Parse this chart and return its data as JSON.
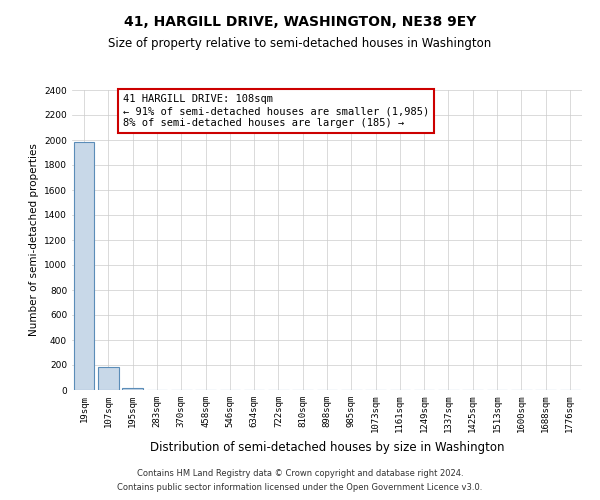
{
  "title": "41, HARGILL DRIVE, WASHINGTON, NE38 9EY",
  "subtitle": "Size of property relative to semi-detached houses in Washington",
  "xlabel": "Distribution of semi-detached houses by size in Washington",
  "ylabel": "Number of semi-detached properties",
  "footnote1": "Contains HM Land Registry data © Crown copyright and database right 2024.",
  "footnote2": "Contains public sector information licensed under the Open Government Licence v3.0.",
  "annotation_line1": "41 HARGILL DRIVE: 108sqm",
  "annotation_line2": "← 91% of semi-detached houses are smaller (1,985)",
  "annotation_line3": "8% of semi-detached houses are larger (185) →",
  "bin_labels": [
    "19sqm",
    "107sqm",
    "195sqm",
    "283sqm",
    "370sqm",
    "458sqm",
    "546sqm",
    "634sqm",
    "722sqm",
    "810sqm",
    "898sqm",
    "985sqm",
    "1073sqm",
    "1161sqm",
    "1249sqm",
    "1337sqm",
    "1425sqm",
    "1513sqm",
    "1600sqm",
    "1688sqm",
    "1776sqm"
  ],
  "bar_heights": [
    1985,
    185,
    20,
    0,
    0,
    0,
    0,
    0,
    0,
    0,
    0,
    0,
    0,
    0,
    0,
    0,
    0,
    0,
    0,
    0,
    0
  ],
  "bar_color": "#c8d8e8",
  "bar_edge_color": "#5b8db8",
  "ylim": [
    0,
    2400
  ],
  "yticks": [
    0,
    200,
    400,
    600,
    800,
    1000,
    1200,
    1400,
    1600,
    1800,
    2000,
    2200,
    2400
  ],
  "grid_color": "#cccccc",
  "background_color": "#ffffff",
  "annotation_box_color": "#cc0000",
  "title_fontsize": 10,
  "subtitle_fontsize": 8.5,
  "xlabel_fontsize": 8.5,
  "ylabel_fontsize": 7.5,
  "tick_fontsize": 6.5,
  "annotation_fontsize": 7.5,
  "footnote_fontsize": 6
}
